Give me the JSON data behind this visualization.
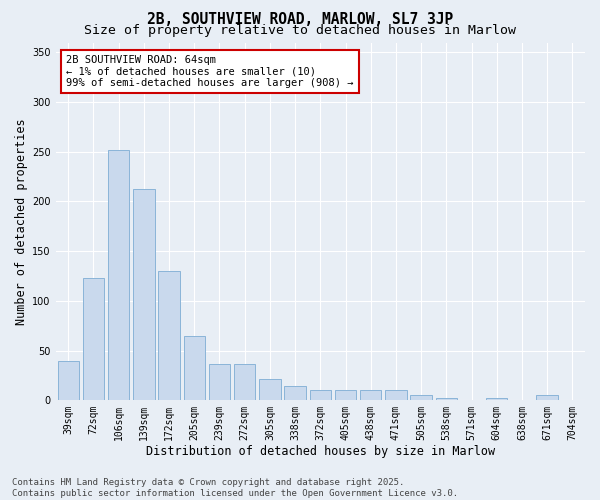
{
  "title": "2B, SOUTHVIEW ROAD, MARLOW, SL7 3JP",
  "subtitle": "Size of property relative to detached houses in Marlow",
  "xlabel": "Distribution of detached houses by size in Marlow",
  "ylabel": "Number of detached properties",
  "categories": [
    "39sqm",
    "72sqm",
    "106sqm",
    "139sqm",
    "172sqm",
    "205sqm",
    "239sqm",
    "272sqm",
    "305sqm",
    "338sqm",
    "372sqm",
    "405sqm",
    "438sqm",
    "471sqm",
    "505sqm",
    "538sqm",
    "571sqm",
    "604sqm",
    "638sqm",
    "671sqm",
    "704sqm"
  ],
  "values": [
    39,
    123,
    252,
    213,
    130,
    65,
    36,
    36,
    21,
    14,
    10,
    10,
    10,
    10,
    5,
    2,
    0,
    2,
    0,
    5,
    0
  ],
  "bar_color": "#c9d9ed",
  "bar_edgecolor": "#8ab4d8",
  "annotation_text": "2B SOUTHVIEW ROAD: 64sqm\n← 1% of detached houses are smaller (10)\n99% of semi-detached houses are larger (908) →",
  "annotation_box_edgecolor": "#cc0000",
  "annotation_box_facecolor": "#ffffff",
  "ylim": [
    0,
    360
  ],
  "yticks": [
    0,
    50,
    100,
    150,
    200,
    250,
    300,
    350
  ],
  "background_color": "#e8eef5",
  "plot_bg_color": "#e8eef5",
  "footer": "Contains HM Land Registry data © Crown copyright and database right 2025.\nContains public sector information licensed under the Open Government Licence v3.0.",
  "title_fontsize": 10.5,
  "subtitle_fontsize": 9.5,
  "xlabel_fontsize": 8.5,
  "ylabel_fontsize": 8.5,
  "tick_fontsize": 7,
  "footer_fontsize": 6.5,
  "grid_color": "#ffffff",
  "ann_fontsize": 7.5
}
